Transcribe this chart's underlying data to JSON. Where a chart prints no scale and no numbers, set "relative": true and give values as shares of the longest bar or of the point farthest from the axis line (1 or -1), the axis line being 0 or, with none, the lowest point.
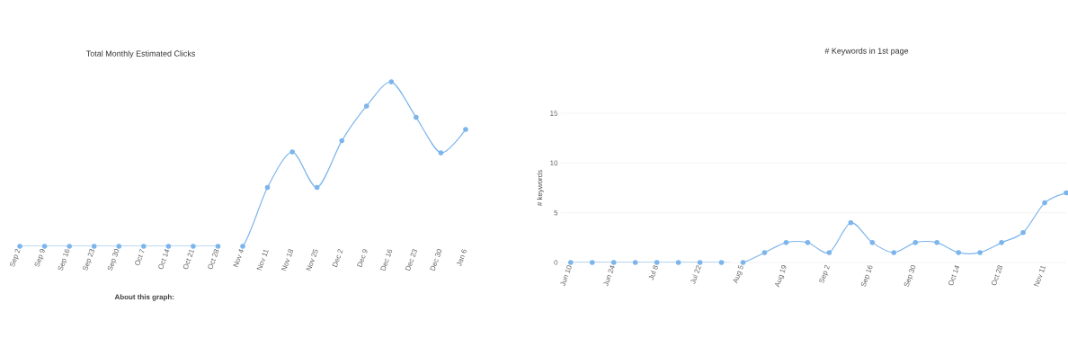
{
  "chart_data": [
    {
      "type": "line",
      "title": "Total Monthly Estimated Clicks",
      "relative": true,
      "annotations": [
        "**About this graph:**"
      ],
      "categories": [
        "Sep 2",
        "Sep 9",
        "Sep 16",
        "Sep 23",
        "Sep 30",
        "Oct 7",
        "Oct 14",
        "Oct 21",
        "Oct 28",
        "Nov 4",
        "Nov 11",
        "Nov 18",
        "Nov 25",
        "Dec 2",
        "Dec 9",
        "Dec 16",
        "Dec 23",
        "Dec 30",
        "Jan 6"
      ],
      "series": [
        {
          "color": "#7cb5ec",
          "values": [
            0,
            0,
            0,
            0,
            0,
            0,
            0,
            0,
            0,
            0,
            0.358,
            0.574,
            0.358,
            0.642,
            0.853,
            1,
            0.784,
            0.568,
            0.711
          ]
        }
      ],
      "marker": "circle",
      "line_style": "solid"
    },
    {
      "type": "line",
      "title": "# Keywords in 1st page",
      "ylabel": "# keywords",
      "categories": [
        "Jun 10",
        null,
        "Jun 24",
        null,
        "Jul 8",
        null,
        "Jul 22",
        null,
        "Aug 5",
        null,
        "Aug 19",
        null,
        "Sep 2",
        null,
        "Sep 16",
        null,
        "Sep 30",
        null,
        "Oct 14",
        null,
        "Oct 28",
        null,
        "Nov 11",
        null
      ],
      "series": [
        {
          "color": "#7cb5ec",
          "values": [
            0,
            0,
            0,
            0,
            0,
            0,
            0,
            0,
            0,
            1,
            2,
            2,
            1,
            4,
            2,
            1,
            2,
            2,
            1,
            1,
            2,
            3,
            6,
            7
          ]
        }
      ],
      "ylim": [
        0,
        15
      ],
      "yticks": [
        0,
        5,
        10,
        15
      ],
      "grid": "y",
      "marker": "circle",
      "line_style": "solid"
    }
  ]
}
